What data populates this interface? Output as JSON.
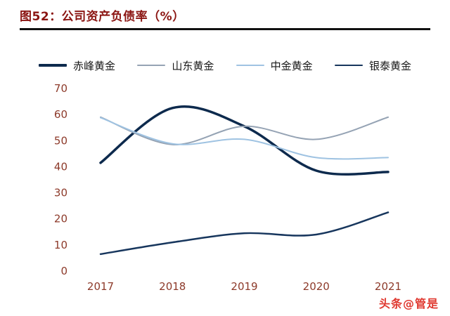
{
  "header": {
    "title": "图52：公司资产负债率（%）"
  },
  "watermark": "头条@管是",
  "colors": {
    "title": "#8b1512",
    "rule": "#111111",
    "axis_labels": "#8d3a2a",
    "watermark": "#e03a31"
  },
  "chart_data": {
    "type": "line",
    "title": "公司资产负债率（%）",
    "categories": [
      "2017",
      "2018",
      "2019",
      "2020",
      "2021"
    ],
    "series": [
      {
        "name": "赤峰黄金",
        "color": "#0d2a4d",
        "stroke_width": 3.5,
        "values": [
          41.5,
          62.5,
          55.5,
          38.5,
          38
        ]
      },
      {
        "name": "山东黄金",
        "color": "#95a3b4",
        "stroke_width": 2,
        "values": [
          59,
          48.5,
          55.5,
          50.5,
          59
        ]
      },
      {
        "name": "中金黄金",
        "color": "#9fc3e2",
        "stroke_width": 2,
        "values": [
          58.8,
          48.8,
          50.5,
          43.5,
          43.5
        ]
      },
      {
        "name": "银泰黄金",
        "color": "#17365d",
        "stroke_width": 2.5,
        "values": [
          6.5,
          11,
          14.5,
          14,
          22.5
        ]
      }
    ],
    "ylim": [
      0,
      70
    ],
    "ytick_step": 10,
    "legend_position": "top",
    "grid": false
  }
}
